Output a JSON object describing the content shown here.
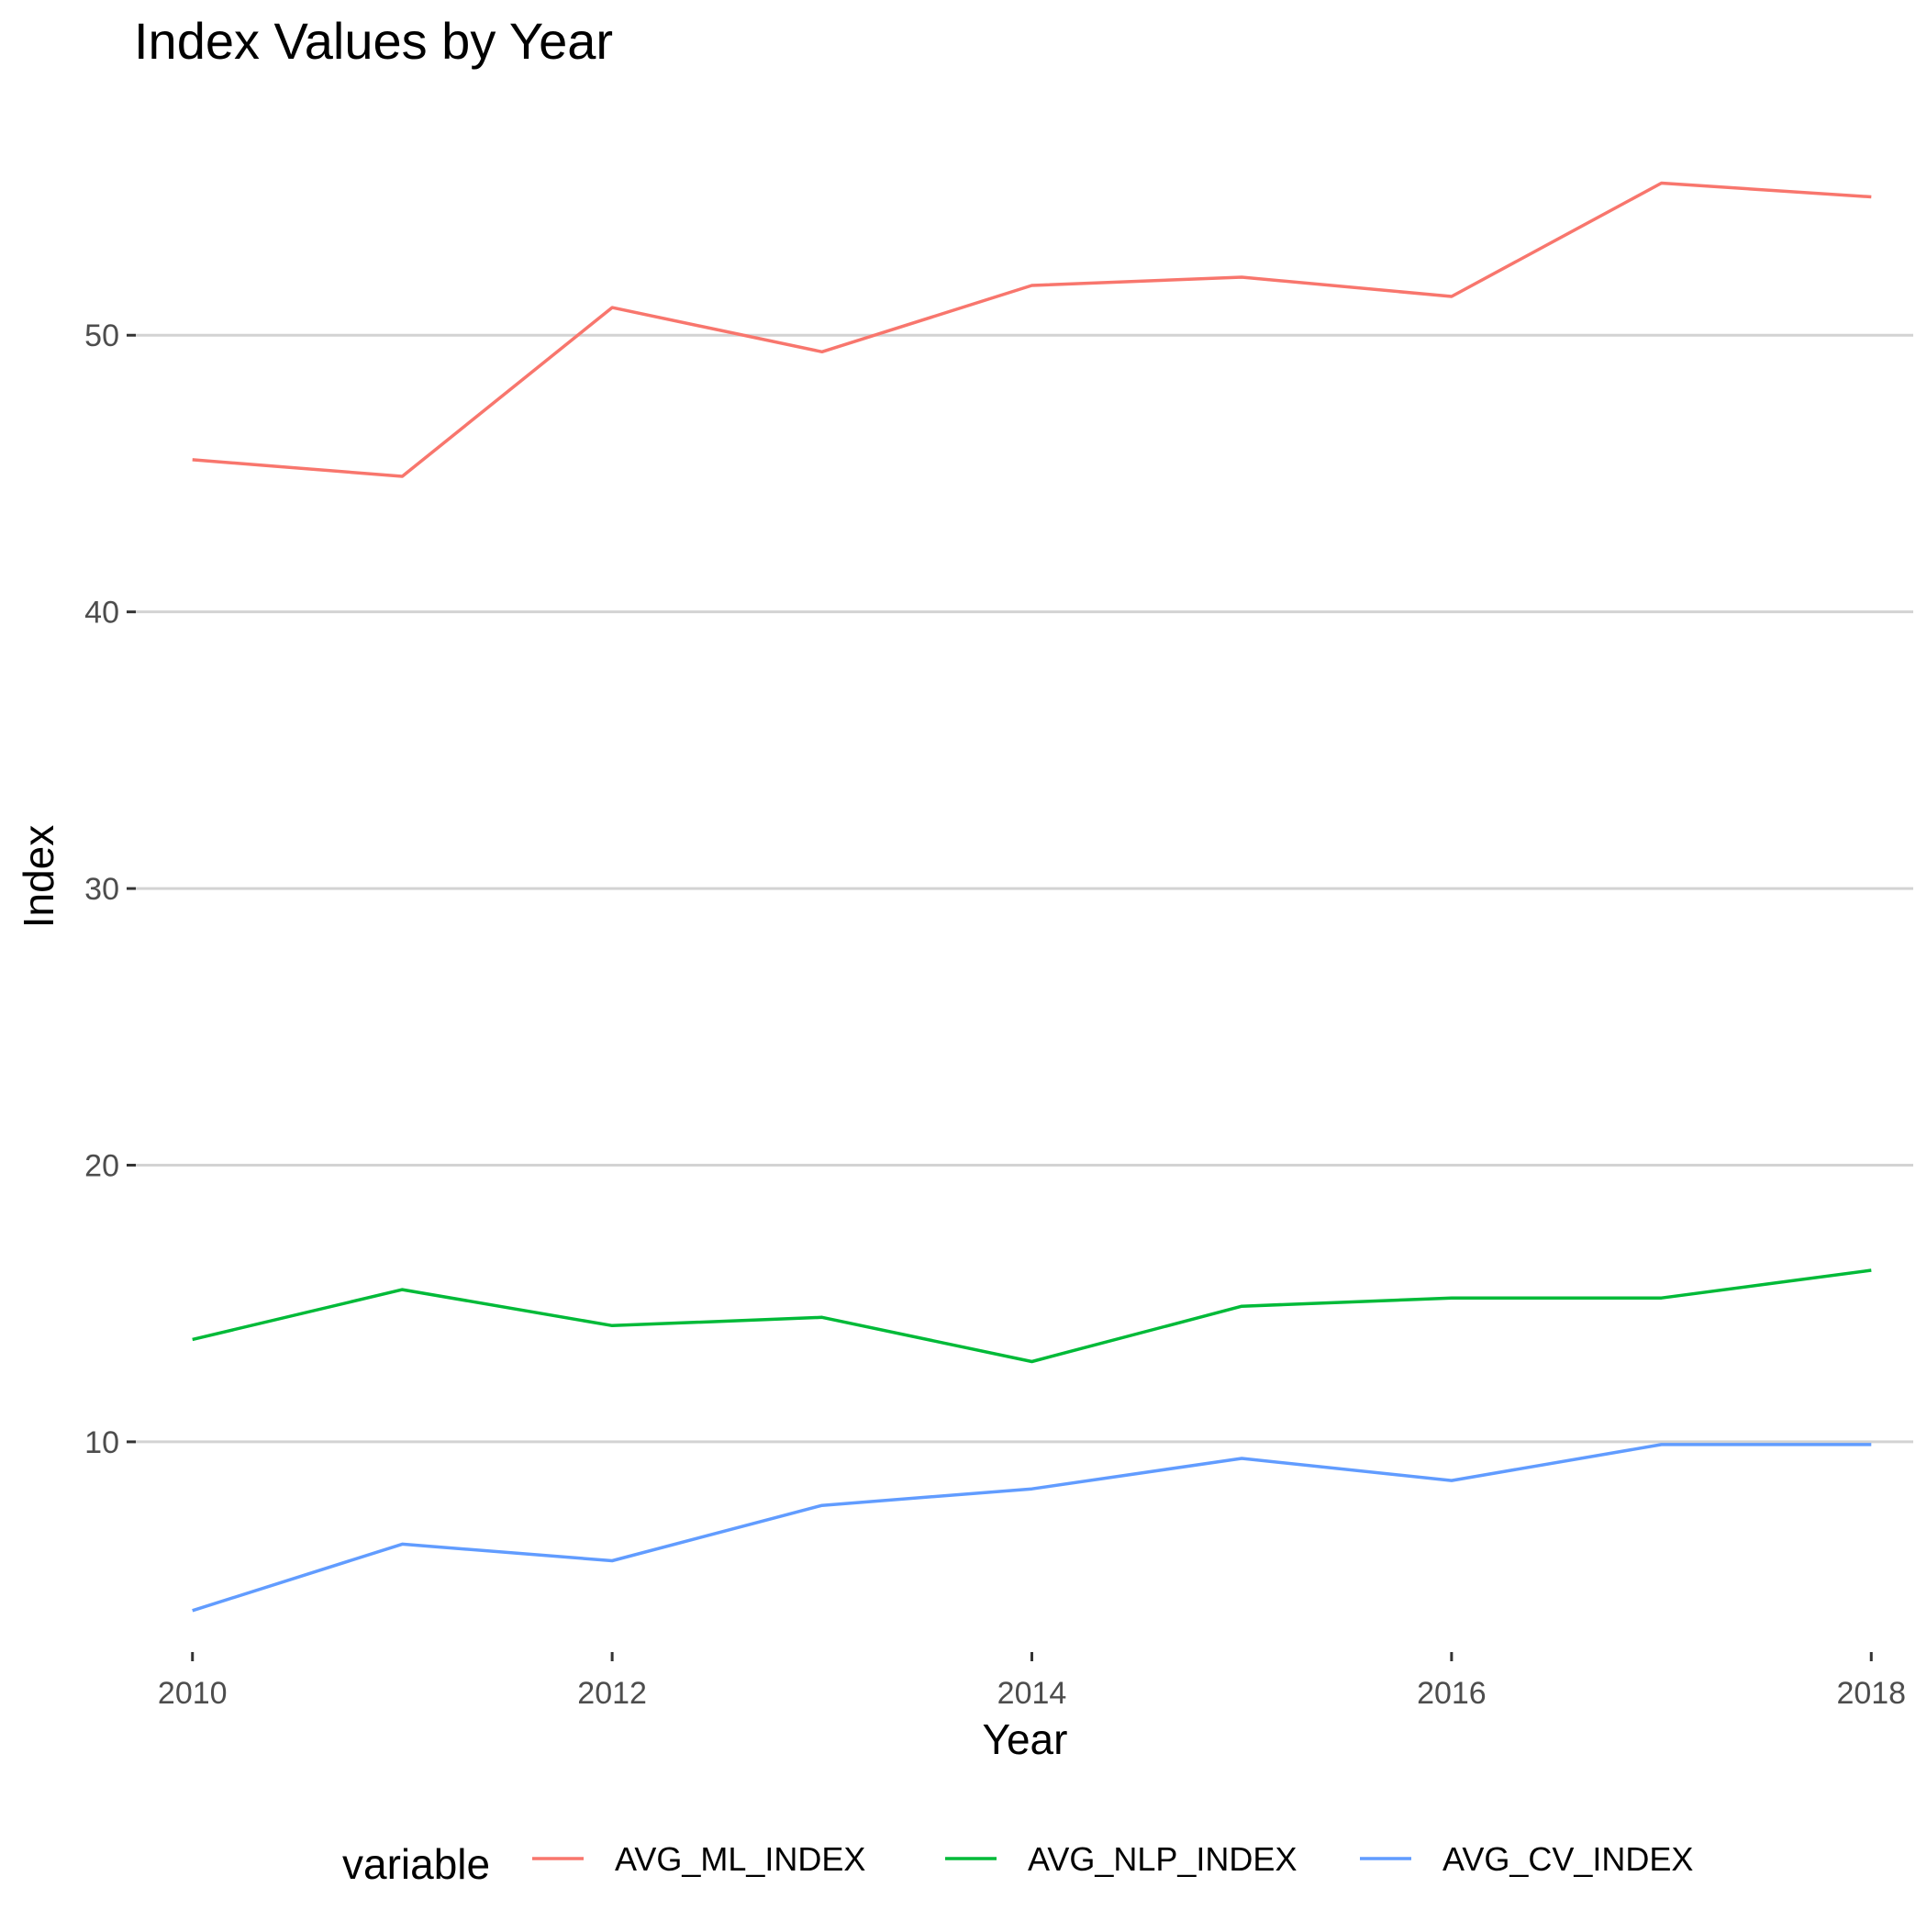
{
  "chart_data": {
    "type": "line",
    "title": "Index Values by Year",
    "xlabel": "Year",
    "ylabel": "Index",
    "x": [
      2010,
      2011,
      2012,
      2013,
      2014,
      2015,
      2016,
      2017,
      2018
    ],
    "x_ticks": [
      2010,
      2012,
      2014,
      2016,
      2018
    ],
    "y_ticks": [
      10,
      20,
      30,
      40,
      50
    ],
    "xlim": [
      2009.73,
      2018.2
    ],
    "ylim": [
      2.4,
      58.8
    ],
    "grid": "horizontal major gridlines only",
    "legend": {
      "title": "variable",
      "position": "bottom"
    },
    "series": [
      {
        "name": "AVG_ML_INDEX",
        "color": "#F8766D",
        "values": [
          45.5,
          44.9,
          51.0,
          49.4,
          51.8,
          52.1,
          51.4,
          55.5,
          55.0
        ]
      },
      {
        "name": "AVG_NLP_INDEX",
        "color": "#00BA38",
        "values": [
          13.7,
          15.5,
          14.2,
          14.5,
          12.9,
          14.9,
          15.2,
          15.2,
          16.2
        ]
      },
      {
        "name": "AVG_CV_INDEX",
        "color": "#619CFF",
        "values": [
          3.9,
          6.3,
          5.7,
          7.7,
          8.3,
          9.4,
          8.6,
          9.9,
          9.9
        ]
      }
    ]
  }
}
